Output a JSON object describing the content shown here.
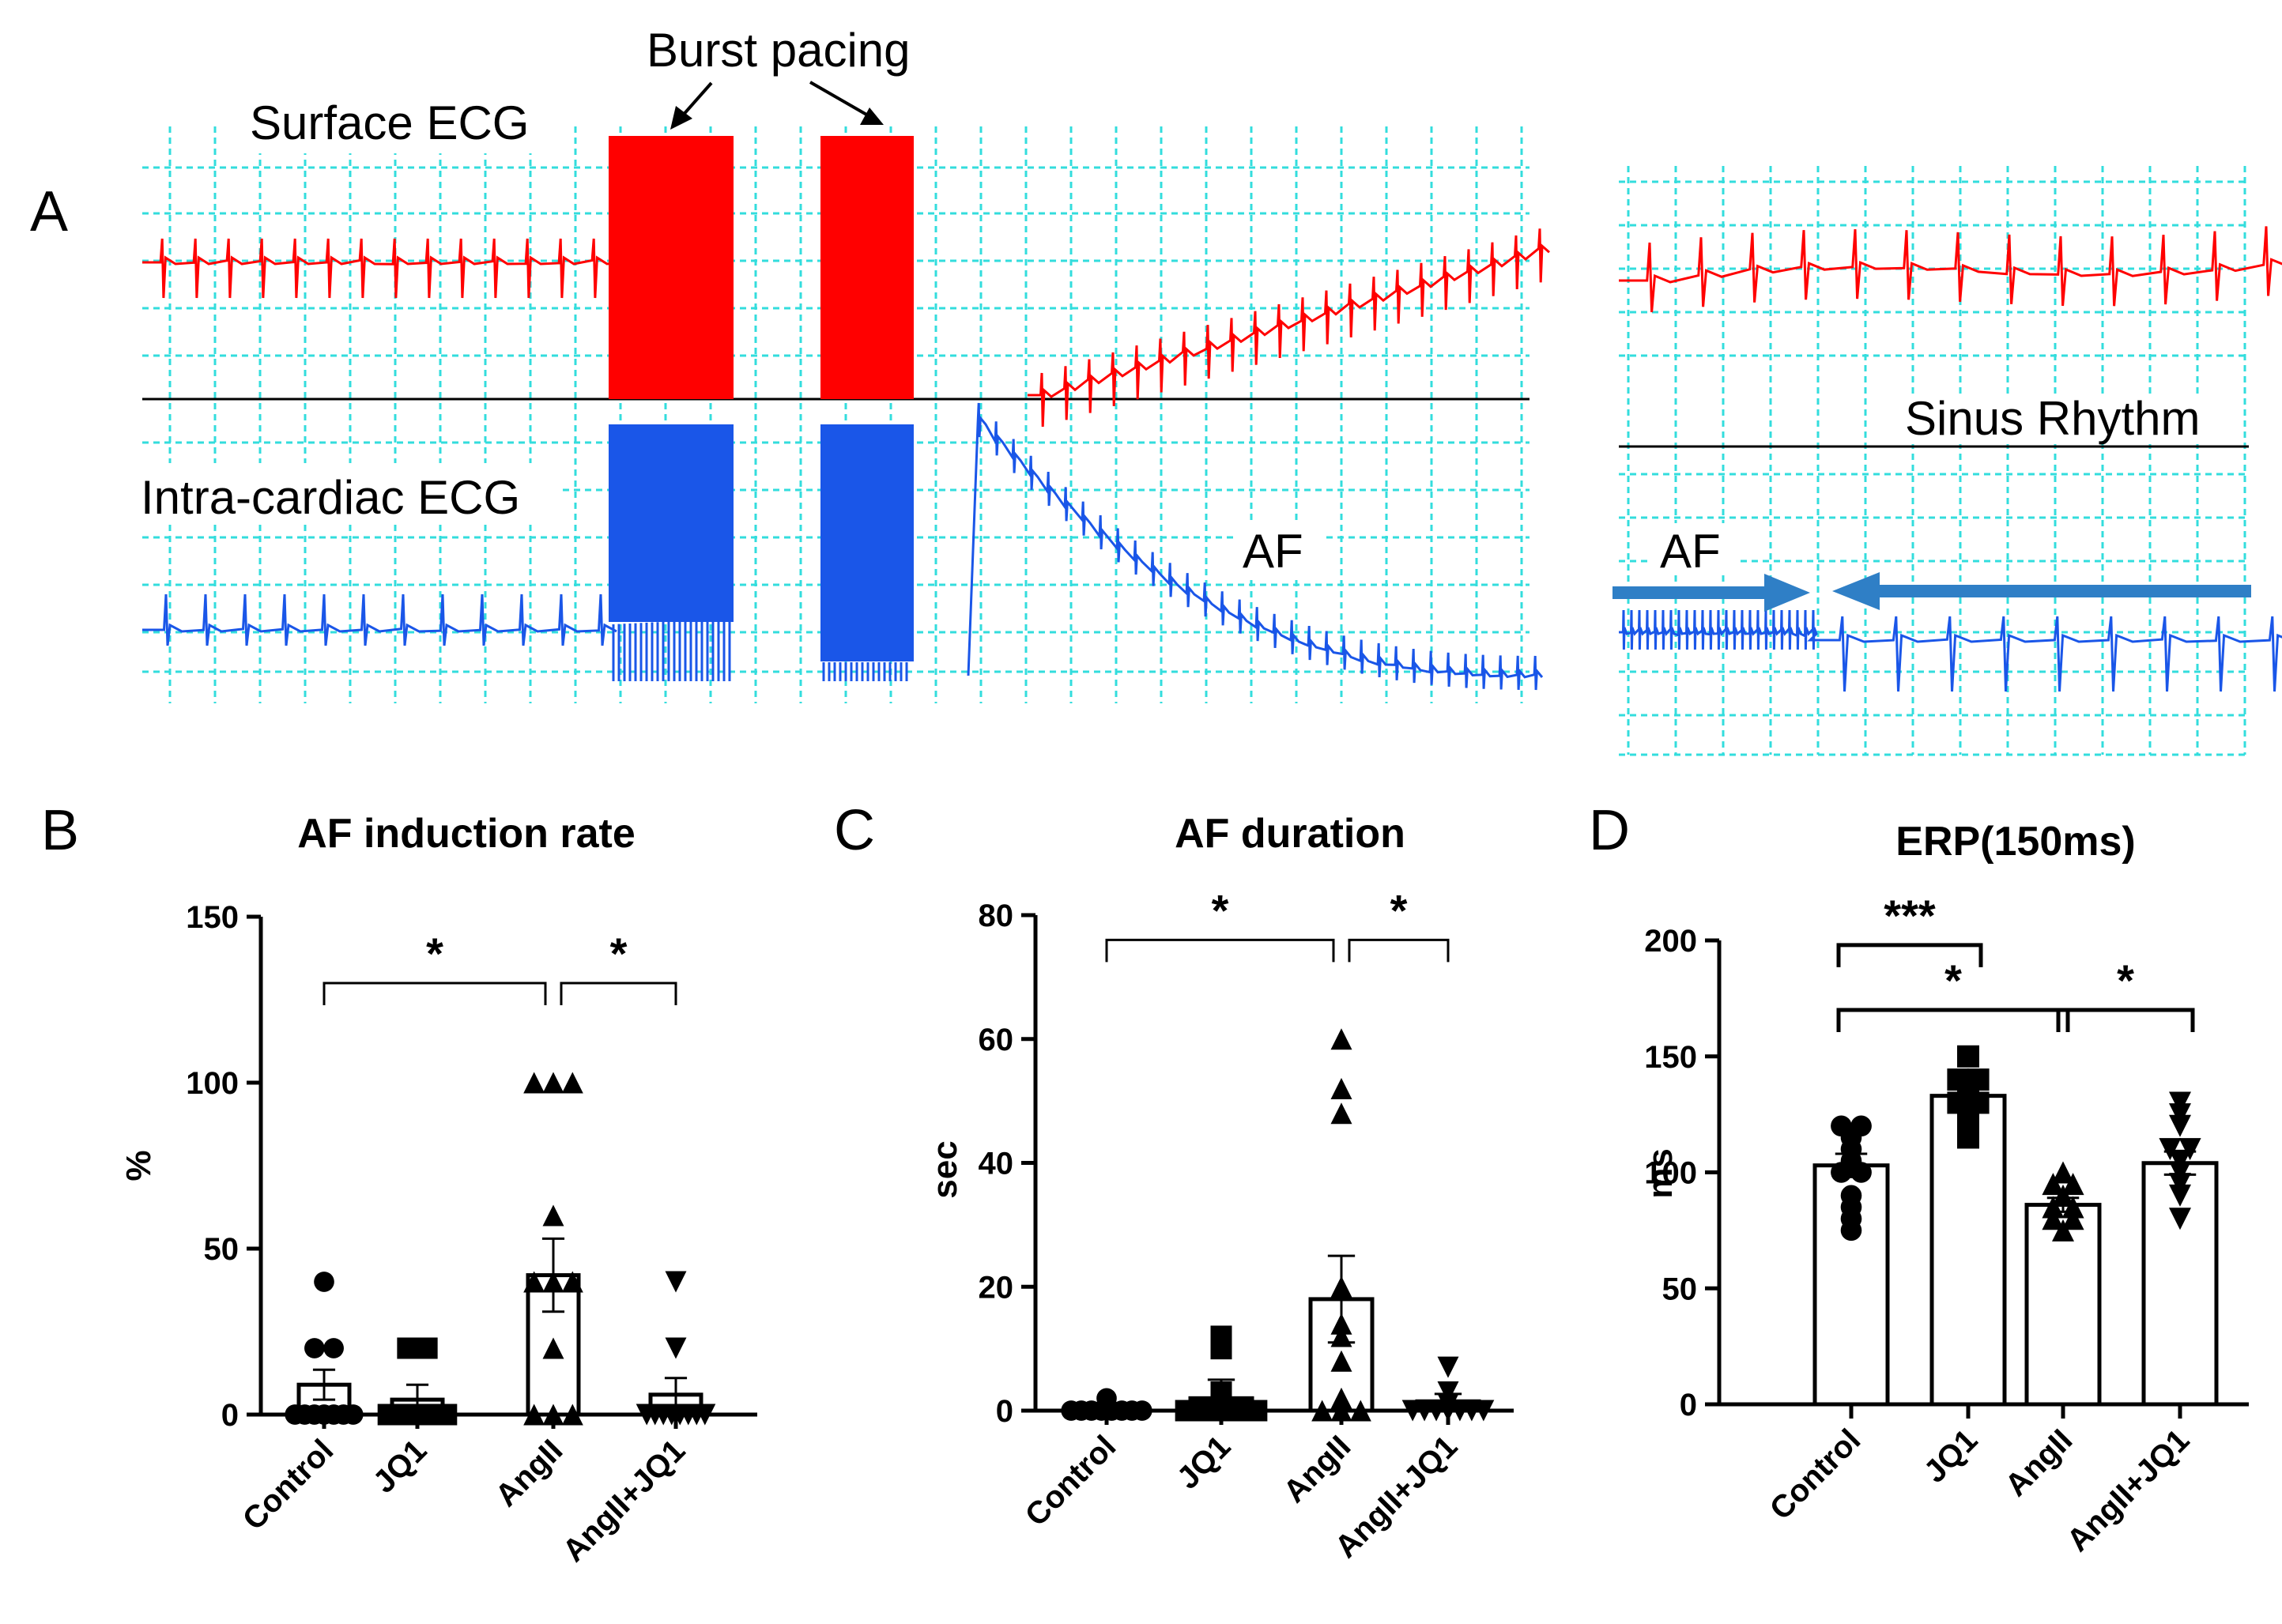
{
  "panel_a": {
    "letter": "A",
    "burst_pacing_label": "Burst pacing",
    "surface_ecg_label": "Surface ECG",
    "intracardiac_ecg_label": "Intra-cardiac  ECG",
    "af_label": "AF",
    "af_arrow_label": "AF",
    "sinus_rhythm_label": "Sinus Rhythm",
    "colors": {
      "surface": "#ff0000",
      "intracardiac": "#1a56e8",
      "grid": "#33dddd",
      "arrow": "#2f7fc6"
    }
  },
  "chart_data": [
    {
      "id": "B",
      "letter": "B",
      "type": "bar",
      "title": "AF induction rate",
      "ylabel": "%",
      "ylim": [
        0,
        150
      ],
      "yticks": [
        0,
        50,
        100,
        150
      ],
      "categories": [
        "Control",
        "JQ1",
        "AngII",
        "AngII+JQ1"
      ],
      "means": [
        9,
        4.5,
        42,
        6
      ],
      "sem": [
        4.5,
        4.5,
        11,
        5
      ],
      "markers": [
        "circle",
        "square",
        "triangle",
        "triangle-down"
      ],
      "points": [
        [
          40,
          20,
          20,
          0,
          0,
          0,
          0,
          0,
          0,
          0
        ],
        [
          20,
          20,
          0,
          0,
          0,
          0,
          0,
          0,
          0,
          0
        ],
        [
          100,
          100,
          100,
          60,
          40,
          40,
          40,
          20,
          0,
          0,
          0
        ],
        [
          40,
          20,
          0,
          0,
          0,
          0,
          0,
          0,
          0,
          0
        ]
      ],
      "brackets": [
        {
          "from": 0,
          "to": 2,
          "level": 130,
          "label": "*"
        },
        {
          "from": 2,
          "to": 3,
          "level": 130,
          "label": "*"
        }
      ]
    },
    {
      "id": "C",
      "letter": "C",
      "type": "bar",
      "title": "AF duration",
      "ylabel": "sec",
      "ylim": [
        0,
        80
      ],
      "yticks": [
        0,
        20,
        40,
        60,
        80
      ],
      "categories": [
        "Control",
        "JQ1",
        "AngII",
        "AngII+JQ1"
      ],
      "means": [
        0.4,
        2,
        18,
        1.5
      ],
      "sem": [
        0.3,
        3,
        7,
        1.2
      ],
      "markers": [
        "circle",
        "square",
        "triangle",
        "triangle-down"
      ],
      "points": [
        [
          2,
          0.5,
          0,
          0,
          0,
          0,
          0,
          0,
          0,
          0
        ],
        [
          12,
          10,
          3,
          1,
          0,
          0,
          0,
          0,
          0,
          0
        ],
        [
          60,
          52,
          48,
          20,
          14,
          12,
          8,
          2,
          0,
          0,
          0
        ],
        [
          7,
          3,
          1,
          0,
          0,
          0,
          0,
          0,
          0,
          0
        ]
      ],
      "brackets": [
        {
          "from": 0,
          "to": 2,
          "level": 76,
          "label": "*"
        },
        {
          "from": 2,
          "to": 3,
          "level": 76,
          "label": "*"
        }
      ]
    },
    {
      "id": "D",
      "letter": "D",
      "type": "bar",
      "title": "ERP(150ms)",
      "ylabel": "ms",
      "ylim": [
        0,
        200
      ],
      "yticks": [
        0,
        50,
        100,
        150,
        200
      ],
      "categories": [
        "Control",
        "JQ1",
        "AngII",
        "AngII+JQ1"
      ],
      "means": [
        103,
        133,
        86,
        104
      ],
      "sem": [
        5,
        4,
        3,
        5
      ],
      "markers": [
        "circle",
        "square",
        "triangle",
        "triangle-down"
      ],
      "points": [
        [
          120,
          120,
          115,
          110,
          105,
          100,
          100,
          90,
          85,
          80,
          75
        ],
        [
          150,
          140,
          140,
          135,
          130,
          130,
          125,
          120,
          115
        ],
        [
          100,
          95,
          95,
          90,
          85,
          85,
          80,
          80,
          75
        ],
        [
          130,
          125,
          120,
          110,
          110,
          105,
          100,
          95,
          90,
          80
        ]
      ],
      "brackets": [
        {
          "from": 0,
          "to": 1,
          "level": 198,
          "label": "***"
        },
        {
          "from": 0,
          "to": 2,
          "level": 170,
          "label": "*"
        },
        {
          "from": 2,
          "to": 3,
          "level": 170,
          "label": "*"
        }
      ]
    }
  ]
}
